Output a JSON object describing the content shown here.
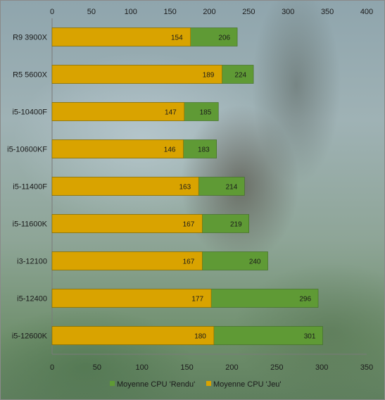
{
  "chart_data": {
    "type": "bar",
    "orientation": "horizontal",
    "stacked": true,
    "categories": [
      "R9 3900X",
      "R5 5600X",
      "i5-10400F",
      "i5-10600KF",
      "i5-11400F",
      "i5-11600K",
      "i3-12100",
      "i5-12400",
      "i5-12600K"
    ],
    "series": [
      {
        "name": "Moyenne CPU 'Jeu'",
        "color": "#d9a300",
        "values": [
          154,
          189,
          147,
          146,
          163,
          167,
          167,
          177,
          180
        ]
      },
      {
        "name": "Moyenne CPU 'Rendu'",
        "color": "#5f9a35",
        "values": [
          206,
          224,
          185,
          183,
          214,
          219,
          240,
          296,
          301
        ]
      }
    ],
    "title": "",
    "xlabel": "",
    "ylabel": "",
    "x_bottom": {
      "min": 0,
      "max": 350,
      "ticks": [
        0,
        50,
        100,
        150,
        200,
        250,
        300,
        350
      ]
    },
    "x_top": {
      "min": 0,
      "max": 400,
      "ticks": [
        0,
        50,
        100,
        150,
        200,
        250,
        300,
        350,
        400
      ]
    },
    "legend": {
      "position": "bottom",
      "entries": [
        "Moyenne CPU 'Rendu'",
        "Moyenne CPU 'Jeu'"
      ]
    },
    "grid": false
  }
}
